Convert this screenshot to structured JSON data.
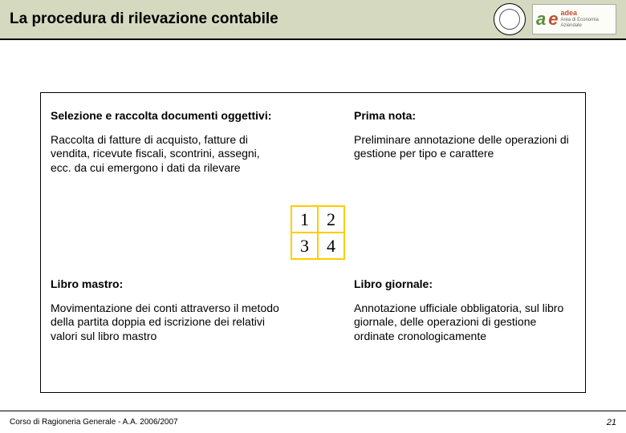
{
  "header": {
    "title": "La procedura di rilevazione contabile",
    "brand_sub": "Area di Economia Aziendale",
    "brand_name": "adea"
  },
  "quadrants": {
    "q1": {
      "title": "Selezione e raccolta documenti oggettivi:",
      "body": "Raccolta di fatture di acquisto, fatture di vendita, ricevute fiscali, scontrini, assegni, ecc. da cui emergono i dati da rilevare"
    },
    "q2": {
      "title": "Prima nota:",
      "body": "Preliminare annotazione delle operazioni di gestione per tipo e carattere"
    },
    "q3": {
      "title": "Libro mastro:",
      "body": "Movimentazione dei conti attraverso il metodo della partita doppia ed iscrizione dei relativi valori sul libro mastro"
    },
    "q4": {
      "title": "Libro giornale:",
      "body": "Annotazione ufficiale obbligatoria, sul libro giornale, delle operazioni di gestione ordinate cronologicamente"
    }
  },
  "grid": {
    "c1": "1",
    "c2": "2",
    "c3": "3",
    "c4": "4"
  },
  "footer": {
    "left": "Corso di Ragioneria Generale - A.A. 2006/2007",
    "page": "21"
  },
  "colors": {
    "header_bg": "#d4d9bf",
    "grid_border": "#ffcc00"
  }
}
